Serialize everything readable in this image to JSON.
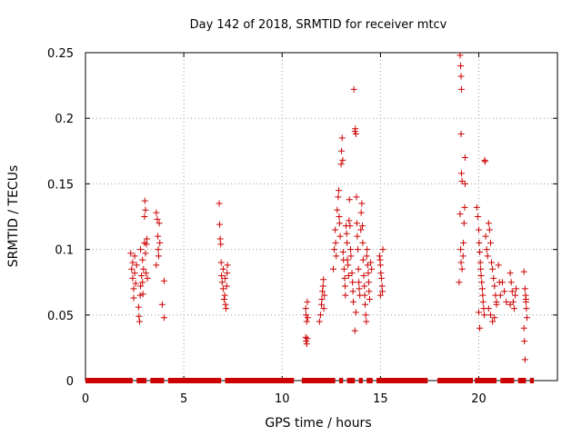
{
  "chart_data": {
    "type": "scatter",
    "title": "Day 142 of 2018, SRMTID for receiver mtcv",
    "xlabel": "GPS time / hours",
    "ylabel": "SRMTID / TECUs",
    "xlim": [
      0,
      24.0
    ],
    "ylim": [
      0,
      0.25
    ],
    "grid": true,
    "marker": "+",
    "series_color": "#cc0000",
    "x_ticks": [
      {
        "value": 0,
        "label": "0"
      },
      {
        "value": 5,
        "label": "5"
      },
      {
        "value": 10,
        "label": "10"
      },
      {
        "value": 15,
        "label": "15"
      },
      {
        "value": 20,
        "label": "20"
      }
    ],
    "y_ticks": [
      {
        "value": 0,
        "label": "0"
      },
      {
        "value": 0.05,
        "label": "0.05"
      },
      {
        "value": 0.1,
        "label": "0.1"
      },
      {
        "value": 0.15,
        "label": "0.15"
      },
      {
        "value": 0.2,
        "label": "0.2"
      },
      {
        "value": 0.25,
        "label": "0.25"
      }
    ],
    "zero_segments": [
      [
        0.0,
        2.4
      ],
      [
        2.6,
        3.1
      ],
      [
        3.3,
        4.0
      ],
      [
        4.2,
        6.9
      ],
      [
        7.1,
        10.6
      ],
      [
        11.0,
        12.7
      ],
      [
        12.9,
        13.1
      ],
      [
        13.3,
        13.7
      ],
      [
        13.9,
        14.1
      ],
      [
        14.3,
        14.6
      ],
      [
        14.8,
        17.4
      ],
      [
        17.9,
        19.7
      ],
      [
        19.8,
        20.9
      ],
      [
        21.1,
        21.8
      ],
      [
        22.0,
        22.4
      ],
      [
        22.6,
        22.8
      ]
    ],
    "points": [
      [
        2.3,
        0.097
      ],
      [
        2.35,
        0.085
      ],
      [
        2.4,
        0.078
      ],
      [
        2.4,
        0.09
      ],
      [
        2.45,
        0.07
      ],
      [
        2.45,
        0.063
      ],
      [
        2.5,
        0.095
      ],
      [
        2.5,
        0.082
      ],
      [
        2.55,
        0.074
      ],
      [
        2.6,
        0.088
      ],
      [
        2.7,
        0.056
      ],
      [
        2.72,
        0.049
      ],
      [
        2.75,
        0.045
      ],
      [
        2.78,
        0.065
      ],
      [
        2.8,
        0.072
      ],
      [
        2.8,
        0.1
      ],
      [
        2.85,
        0.08
      ],
      [
        2.9,
        0.092
      ],
      [
        2.95,
        0.085
      ],
      [
        2.9,
        0.075
      ],
      [
        2.92,
        0.066
      ],
      [
        3.0,
        0.105
      ],
      [
        3.0,
        0.125
      ],
      [
        3.02,
        0.137
      ],
      [
        3.05,
        0.13
      ],
      [
        3.05,
        0.097
      ],
      [
        3.08,
        0.082
      ],
      [
        3.1,
        0.104
      ],
      [
        3.12,
        0.108
      ],
      [
        3.15,
        0.078
      ],
      [
        3.6,
        0.128
      ],
      [
        3.65,
        0.123
      ],
      [
        3.68,
        0.11
      ],
      [
        3.7,
        0.1
      ],
      [
        3.72,
        0.095
      ],
      [
        3.75,
        0.12
      ],
      [
        3.78,
        0.105
      ],
      [
        3.6,
        0.088
      ],
      [
        3.9,
        0.058
      ],
      [
        4.0,
        0.076
      ],
      [
        4.0,
        0.048
      ],
      [
        6.8,
        0.135
      ],
      [
        6.82,
        0.119
      ],
      [
        6.85,
        0.108
      ],
      [
        6.88,
        0.104
      ],
      [
        6.9,
        0.09
      ],
      [
        6.92,
        0.08
      ],
      [
        6.95,
        0.075
      ],
      [
        7.0,
        0.07
      ],
      [
        7.0,
        0.085
      ],
      [
        7.05,
        0.062
      ],
      [
        7.08,
        0.065
      ],
      [
        7.1,
        0.078
      ],
      [
        7.12,
        0.058
      ],
      [
        7.15,
        0.055
      ],
      [
        7.18,
        0.072
      ],
      [
        7.2,
        0.082
      ],
      [
        7.22,
        0.088
      ],
      [
        11.2,
        0.055
      ],
      [
        11.22,
        0.05
      ],
      [
        11.25,
        0.045
      ],
      [
        11.28,
        0.06
      ],
      [
        11.3,
        0.048
      ],
      [
        11.2,
        0.033
      ],
      [
        11.22,
        0.03
      ],
      [
        11.25,
        0.028
      ],
      [
        11.28,
        0.032
      ],
      [
        11.9,
        0.045
      ],
      [
        11.95,
        0.05
      ],
      [
        12.0,
        0.058
      ],
      [
        12.02,
        0.062
      ],
      [
        12.05,
        0.068
      ],
      [
        12.08,
        0.072
      ],
      [
        12.1,
        0.077
      ],
      [
        12.12,
        0.055
      ],
      [
        12.15,
        0.065
      ],
      [
        12.6,
        0.085
      ],
      [
        12.65,
        0.1
      ],
      [
        12.7,
        0.115
      ],
      [
        12.72,
        0.105
      ],
      [
        12.75,
        0.095
      ],
      [
        12.8,
        0.13
      ],
      [
        12.85,
        0.14
      ],
      [
        12.88,
        0.145
      ],
      [
        12.9,
        0.125
      ],
      [
        12.92,
        0.12
      ],
      [
        12.95,
        0.11
      ],
      [
        13.0,
        0.165
      ],
      [
        13.02,
        0.175
      ],
      [
        13.05,
        0.185
      ],
      [
        13.08,
        0.168
      ],
      [
        13.1,
        0.098
      ],
      [
        13.12,
        0.092
      ],
      [
        13.15,
        0.085
      ],
      [
        13.18,
        0.078
      ],
      [
        13.2,
        0.072
      ],
      [
        13.22,
        0.065
      ],
      [
        13.25,
        0.118
      ],
      [
        13.28,
        0.112
      ],
      [
        13.3,
        0.105
      ],
      [
        13.32,
        0.092
      ],
      [
        13.35,
        0.088
      ],
      [
        13.38,
        0.08
      ],
      [
        13.4,
        0.122
      ],
      [
        13.42,
        0.138
      ],
      [
        13.45,
        0.118
      ],
      [
        13.48,
        0.1
      ],
      [
        13.5,
        0.095
      ],
      [
        13.55,
        0.082
      ],
      [
        13.58,
        0.075
      ],
      [
        13.6,
        0.068
      ],
      [
        13.62,
        0.06
      ],
      [
        13.65,
        0.222
      ],
      [
        13.7,
        0.19
      ],
      [
        13.72,
        0.192
      ],
      [
        13.75,
        0.188
      ],
      [
        13.78,
        0.14
      ],
      [
        13.8,
        0.12
      ],
      [
        13.82,
        0.11
      ],
      [
        13.85,
        0.1
      ],
      [
        13.88,
        0.085
      ],
      [
        13.9,
        0.075
      ],
      [
        13.92,
        0.07
      ],
      [
        13.95,
        0.065
      ],
      [
        13.7,
        0.038
      ],
      [
        13.75,
        0.052
      ],
      [
        14.0,
        0.115
      ],
      [
        14.02,
        0.128
      ],
      [
        14.05,
        0.135
      ],
      [
        14.08,
        0.118
      ],
      [
        14.1,
        0.105
      ],
      [
        14.12,
        0.092
      ],
      [
        14.15,
        0.08
      ],
      [
        14.18,
        0.072
      ],
      [
        14.2,
        0.065
      ],
      [
        14.22,
        0.058
      ],
      [
        14.25,
        0.05
      ],
      [
        14.28,
        0.045
      ],
      [
        14.3,
        0.095
      ],
      [
        14.32,
        0.1
      ],
      [
        14.35,
        0.088
      ],
      [
        14.38,
        0.082
      ],
      [
        14.4,
        0.075
      ],
      [
        14.42,
        0.068
      ],
      [
        14.45,
        0.062
      ],
      [
        14.5,
        0.09
      ],
      [
        14.55,
        0.085
      ],
      [
        14.95,
        0.095
      ],
      [
        15.0,
        0.088
      ],
      [
        15.02,
        0.082
      ],
      [
        15.05,
        0.078
      ],
      [
        15.08,
        0.072
      ],
      [
        15.1,
        0.068
      ],
      [
        15.12,
        0.1
      ],
      [
        15.0,
        0.065
      ],
      [
        14.98,
        0.092
      ],
      [
        19.05,
        0.248
      ],
      [
        19.08,
        0.24
      ],
      [
        19.1,
        0.232
      ],
      [
        19.12,
        0.222
      ],
      [
        19.1,
        0.188
      ],
      [
        19.12,
        0.158
      ],
      [
        19.15,
        0.152
      ],
      [
        19.05,
        0.127
      ],
      [
        19.08,
        0.1
      ],
      [
        19.1,
        0.09
      ],
      [
        19.15,
        0.085
      ],
      [
        19.2,
        0.095
      ],
      [
        19.22,
        0.105
      ],
      [
        19.25,
        0.12
      ],
      [
        19.28,
        0.132
      ],
      [
        19.3,
        0.17
      ],
      [
        19.3,
        0.15
      ],
      [
        19.0,
        0.075
      ],
      [
        19.9,
        0.132
      ],
      [
        19.95,
        0.125
      ],
      [
        20.0,
        0.115
      ],
      [
        20.02,
        0.105
      ],
      [
        20.05,
        0.098
      ],
      [
        20.08,
        0.09
      ],
      [
        20.1,
        0.085
      ],
      [
        20.12,
        0.08
      ],
      [
        20.15,
        0.075
      ],
      [
        20.18,
        0.07
      ],
      [
        20.2,
        0.065
      ],
      [
        20.22,
        0.06
      ],
      [
        20.25,
        0.055
      ],
      [
        20.28,
        0.05
      ],
      [
        20.0,
        0.052
      ],
      [
        20.05,
        0.04
      ],
      [
        20.3,
        0.168
      ],
      [
        20.32,
        0.167
      ],
      [
        20.35,
        0.11
      ],
      [
        20.4,
        0.1
      ],
      [
        20.45,
        0.095
      ],
      [
        20.5,
        0.12
      ],
      [
        20.55,
        0.115
      ],
      [
        20.6,
        0.105
      ],
      [
        20.65,
        0.09
      ],
      [
        20.7,
        0.085
      ],
      [
        20.75,
        0.078
      ],
      [
        20.8,
        0.072
      ],
      [
        20.85,
        0.065
      ],
      [
        20.9,
        0.06
      ],
      [
        20.5,
        0.055
      ],
      [
        20.6,
        0.05
      ],
      [
        20.7,
        0.045
      ],
      [
        20.8,
        0.048
      ],
      [
        20.9,
        0.058
      ],
      [
        21.0,
        0.088
      ],
      [
        21.05,
        0.075
      ],
      [
        21.1,
        0.065
      ],
      [
        21.2,
        0.075
      ],
      [
        21.3,
        0.068
      ],
      [
        21.4,
        0.06
      ],
      [
        21.6,
        0.082
      ],
      [
        21.65,
        0.075
      ],
      [
        21.7,
        0.068
      ],
      [
        21.75,
        0.06
      ],
      [
        21.8,
        0.055
      ],
      [
        21.85,
        0.065
      ],
      [
        21.9,
        0.07
      ],
      [
        21.6,
        0.058
      ],
      [
        22.3,
        0.083
      ],
      [
        22.35,
        0.07
      ],
      [
        22.38,
        0.065
      ],
      [
        22.4,
        0.06
      ],
      [
        22.42,
        0.055
      ],
      [
        22.45,
        0.048
      ],
      [
        22.3,
        0.04
      ],
      [
        22.32,
        0.03
      ],
      [
        22.35,
        0.016
      ],
      [
        22.4,
        0.062
      ]
    ]
  }
}
